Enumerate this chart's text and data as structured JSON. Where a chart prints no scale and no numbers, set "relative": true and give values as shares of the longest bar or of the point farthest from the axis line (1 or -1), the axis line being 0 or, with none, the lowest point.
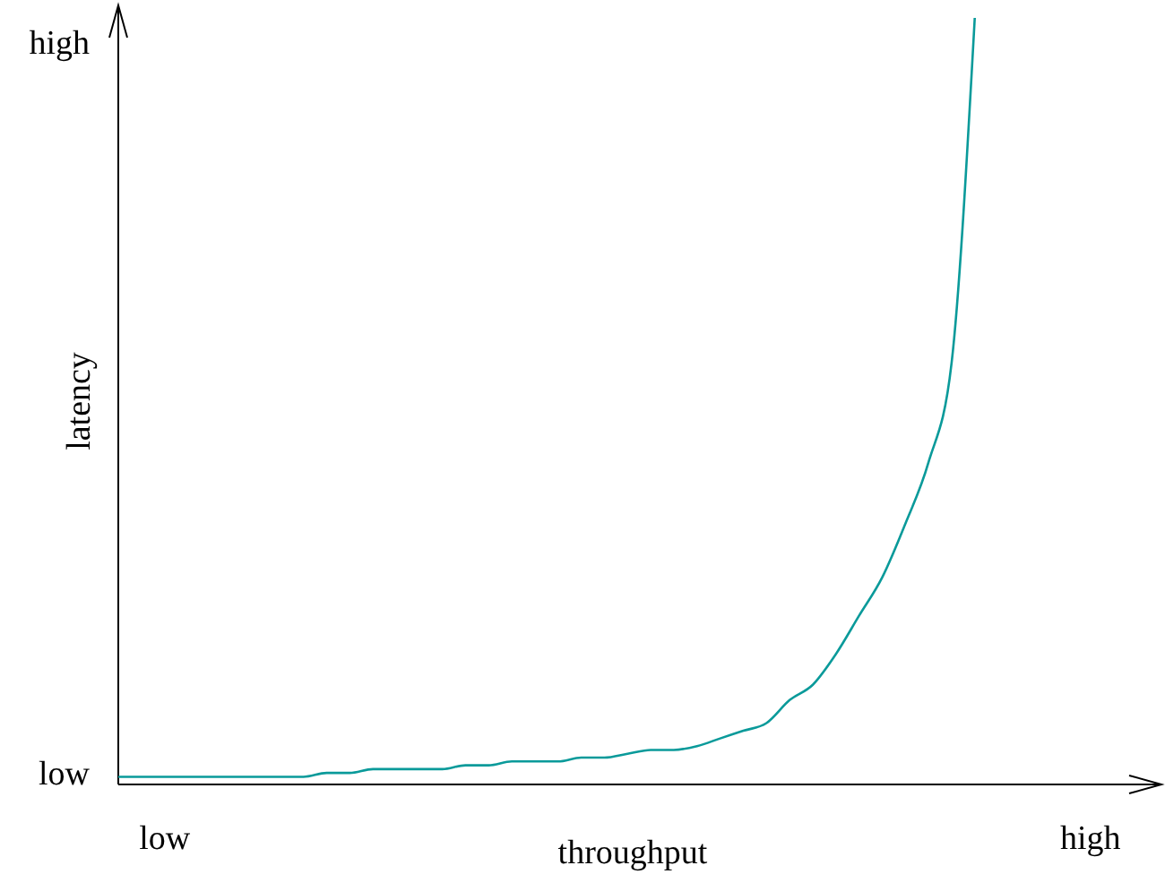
{
  "chart_data": {
    "type": "line",
    "relative": true,
    "xlabel": "throughput",
    "ylabel": "latency",
    "categories": [
      null,
      null,
      "low",
      null,
      null,
      null,
      null,
      null,
      null,
      null,
      null,
      null,
      null,
      null,
      null,
      null,
      null,
      null,
      null,
      null,
      null,
      null,
      null,
      null,
      null,
      null,
      null,
      null,
      null,
      null,
      null,
      null,
      null,
      null,
      null,
      null,
      null,
      null,
      null,
      null,
      null,
      null,
      "high"
    ],
    "series": [
      {
        "color": "#0a9a9a",
        "values": [
          0.01,
          0.01,
          0.01,
          0.01,
          0.01,
          0.01,
          0.01,
          0.01,
          0.01,
          0.015,
          0.015,
          0.02,
          0.02,
          0.02,
          0.02,
          0.025,
          0.025,
          0.03,
          0.03,
          0.03,
          0.035,
          0.035,
          0.04,
          0.045,
          0.045,
          0.05,
          0.06,
          0.07,
          0.08,
          0.11,
          0.13,
          0.17,
          0.22,
          0.27,
          0.34,
          0.42,
          0.55,
          1,
          null,
          null,
          null,
          null,
          null
        ]
      }
    ],
    "annotations": [
      "low",
      "high"
    ],
    "marker": "none",
    "line_style": "solid"
  }
}
